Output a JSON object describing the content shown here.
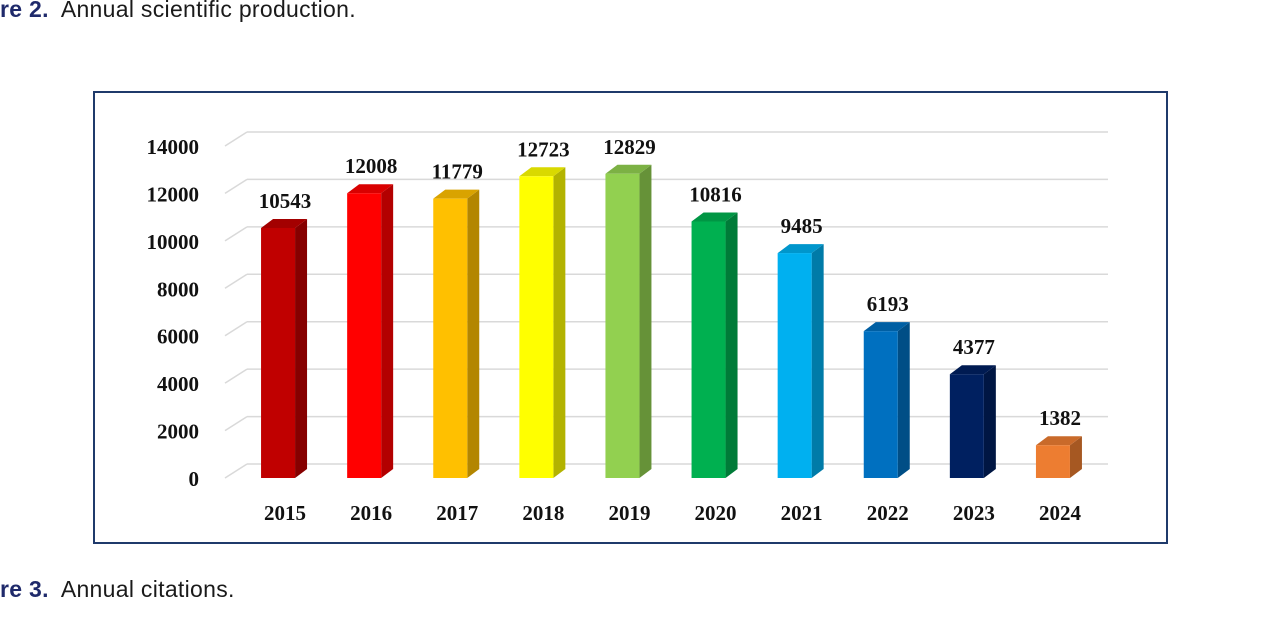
{
  "captions": {
    "top": {
      "label": "re 2.",
      "text": "Annual scientific production."
    },
    "bottom": {
      "label": "re 3.",
      "text": "Annual citations."
    }
  },
  "chart_data": {
    "type": "bar",
    "title": "",
    "xlabel": "",
    "ylabel": "",
    "categories": [
      "2015",
      "2016",
      "2017",
      "2018",
      "2019",
      "2020",
      "2021",
      "2022",
      "2023",
      "2024"
    ],
    "values": [
      10543,
      12008,
      11779,
      12723,
      12829,
      10816,
      9485,
      6193,
      4377,
      1382
    ],
    "data_labels": [
      "10543",
      "12008",
      "11779",
      "12723",
      "12829",
      "10816",
      "9485",
      "6193",
      "4377",
      "1382"
    ],
    "yticks": [
      "0",
      "2000",
      "4000",
      "6000",
      "8000",
      "10000",
      "12000",
      "14000"
    ],
    "ylim": [
      0,
      14000
    ],
    "grid": true,
    "legend": "none",
    "style": "3d-column",
    "colors": [
      "#c00000",
      "#ff0000",
      "#ffc000",
      "#ffff00",
      "#92d050",
      "#00b050",
      "#00b0f0",
      "#0070c0",
      "#002060",
      "#ed7d31"
    ]
  }
}
